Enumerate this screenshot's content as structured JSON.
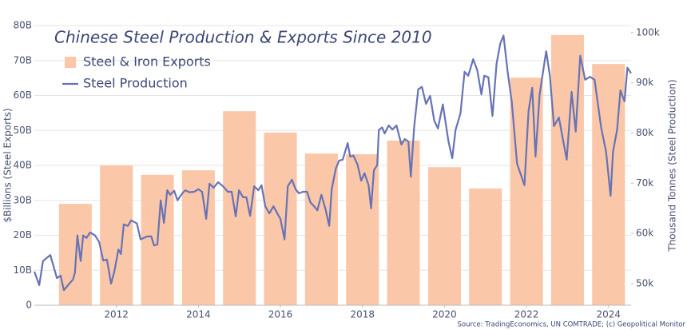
{
  "chart_data": {
    "type": "combo",
    "title": "Chinese Steel Production & Exports Since 2010",
    "ylabel": "$Billions (Steel Exports)",
    "y2label": "Thousand Tonnes (Steel Production)",
    "source": "Source: TradingEconomics, UN COMTRADE; (c) Geopolitical Monitor",
    "legend": "upper left",
    "grid": true,
    "xlim": [
      2010,
      2024.55
    ],
    "xticks": [
      2012,
      2014,
      2016,
      2018,
      2020,
      2022,
      2024
    ],
    "ylim": [
      0,
      80
    ],
    "yticks": [
      0,
      {
        "value": 10,
        "label": "10B"
      },
      {
        "value": 20,
        "label": "20B"
      },
      {
        "value": 30,
        "label": "30B"
      },
      {
        "value": 40,
        "label": "40B"
      },
      {
        "value": 50,
        "label": "50B"
      },
      {
        "value": 60,
        "label": "60B"
      },
      {
        "value": 70,
        "label": "70B"
      },
      {
        "value": 80,
        "label": "80B"
      }
    ],
    "y2lim": [
      45700,
      101400
    ],
    "y2ticks": [
      {
        "value": 50000,
        "label": "50k"
      },
      {
        "value": 60000,
        "label": "60k"
      },
      {
        "value": 70000,
        "label": "70k"
      },
      {
        "value": 80000,
        "label": "80k"
      },
      {
        "value": 90000,
        "label": "90k"
      },
      {
        "value": 100000,
        "label": "100k"
      }
    ],
    "series": [
      {
        "name": "Steel & Iron Exports",
        "type": "bar",
        "color": "#fbc7a9",
        "x": [
          2011,
          2012,
          2013,
          2014,
          2015,
          2016,
          2017,
          2018,
          2019,
          2020,
          2021,
          2022,
          2023,
          2024
        ],
        "values": [
          29.0,
          40.0,
          37.3,
          38.6,
          55.5,
          49.4,
          43.4,
          43.2,
          47.1,
          39.5,
          33.4,
          65.1,
          77.3,
          69.0
        ]
      },
      {
        "name": "Steel Production",
        "type": "line",
        "axis": "y2",
        "color": "#6673b6",
        "x": [
          2010.0,
          2010.12,
          2010.21,
          2010.39,
          2010.55,
          2010.64,
          2010.72,
          2010.82,
          2010.94,
          2010.99,
          2011.05,
          2011.13,
          2011.19,
          2011.27,
          2011.36,
          2011.48,
          2011.58,
          2011.68,
          2011.77,
          2011.87,
          2011.95,
          2012.05,
          2012.11,
          2012.18,
          2012.28,
          2012.36,
          2012.5,
          2012.59,
          2012.75,
          2012.85,
          2012.92,
          2013.0,
          2013.08,
          2013.16,
          2013.24,
          2013.31,
          2013.41,
          2013.49,
          2013.61,
          2013.68,
          2013.78,
          2013.9,
          2014.0,
          2014.09,
          2014.19,
          2014.27,
          2014.37,
          2014.48,
          2014.6,
          2014.72,
          2014.81,
          2014.91,
          2014.99,
          2015.09,
          2015.17,
          2015.26,
          2015.36,
          2015.46,
          2015.54,
          2015.63,
          2015.73,
          2015.83,
          2015.93,
          2016.0,
          2016.1,
          2016.18,
          2016.28,
          2016.37,
          2016.45,
          2016.55,
          2016.65,
          2016.73,
          2016.8,
          2016.9,
          2017.0,
          2017.1,
          2017.19,
          2017.25,
          2017.35,
          2017.43,
          2017.52,
          2017.64,
          2017.7,
          2017.78,
          2017.88,
          2017.97,
          2018.05,
          2018.15,
          2018.21,
          2018.28,
          2018.36,
          2018.4,
          2018.48,
          2018.54,
          2018.64,
          2018.73,
          2018.83,
          2018.95,
          2019.03,
          2019.12,
          2019.18,
          2019.26,
          2019.36,
          2019.45,
          2019.55,
          2019.65,
          2019.75,
          2019.84,
          2019.96,
          2020.1,
          2020.19,
          2020.27,
          2020.39,
          2020.49,
          2020.58,
          2020.7,
          2020.8,
          2020.9,
          2020.97,
          2021.07,
          2021.17,
          2021.27,
          2021.36,
          2021.44,
          2021.54,
          2021.64,
          2021.77,
          2021.95,
          2022.05,
          2022.14,
          2022.22,
          2022.32,
          2022.48,
          2022.57,
          2022.67,
          2022.79,
          2022.98,
          2023.1,
          2023.2,
          2023.31,
          2023.43,
          2023.55,
          2023.66,
          2023.82,
          2023.94,
          2024.05,
          2024.11,
          2024.21,
          2024.29,
          2024.39,
          2024.46,
          2024.55
        ],
        "values": [
          52400,
          49700,
          54500,
          55700,
          51100,
          51600,
          48700,
          49700,
          50800,
          52200,
          59600,
          54500,
          59600,
          59100,
          60200,
          59600,
          58300,
          54600,
          54800,
          50000,
          52400,
          56800,
          55900,
          61800,
          61500,
          62600,
          62000,
          58800,
          59400,
          59400,
          57600,
          57800,
          66600,
          62100,
          68600,
          67700,
          68500,
          66600,
          68000,
          68600,
          68200,
          68300,
          68800,
          68300,
          62900,
          69900,
          69100,
          70200,
          69400,
          68300,
          68300,
          63400,
          68600,
          67200,
          67200,
          63500,
          69400,
          68600,
          69600,
          65400,
          64000,
          65400,
          63900,
          62900,
          58800,
          69400,
          70700,
          68800,
          68000,
          68300,
          68300,
          66200,
          65600,
          64600,
          67700,
          64800,
          61500,
          68800,
          72900,
          74500,
          74700,
          78000,
          75300,
          75500,
          73700,
          70500,
          72000,
          69600,
          65000,
          72600,
          73600,
          80600,
          81100,
          79900,
          81500,
          80700,
          81500,
          77700,
          78800,
          78300,
          71300,
          81100,
          88700,
          89200,
          85800,
          87400,
          82500,
          80900,
          85700,
          78200,
          75000,
          80600,
          83900,
          92200,
          91400,
          94700,
          92500,
          87700,
          91400,
          91100,
          83400,
          93800,
          97800,
          99400,
          92200,
          86300,
          73900,
          69600,
          84400,
          89000,
          75300,
          87700,
          96300,
          91400,
          81400,
          83100,
          74700,
          88200,
          80300,
          95400,
          90600,
          91200,
          90600,
          81100,
          76300,
          67500,
          76300,
          80700,
          88500,
          86300,
          93000,
          91900
        ]
      }
    ]
  }
}
